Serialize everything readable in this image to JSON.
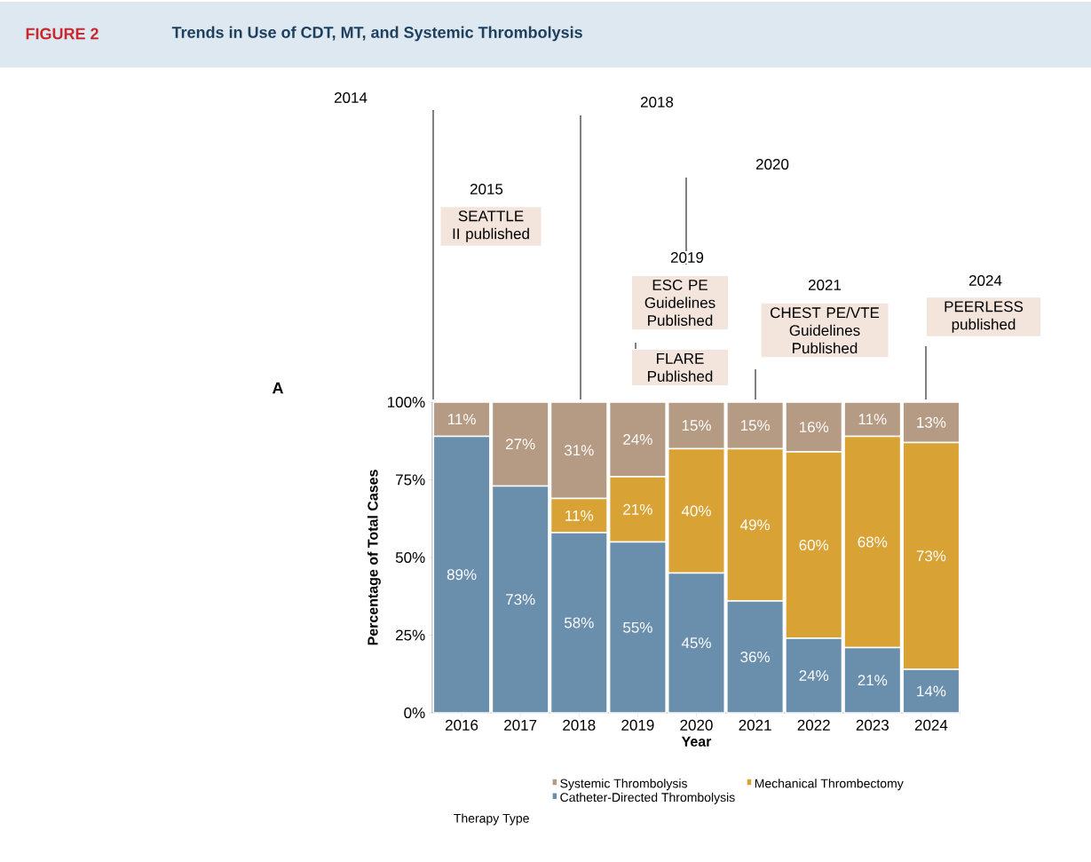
{
  "chart_data": {
    "type": "bar",
    "stacked": true,
    "title": "Trends in Use of CDT, MT, and Systemic Thrombolysis",
    "xlabel": "Year",
    "ylabel": "Percentage of Total Cases",
    "legend_title": "Therapy Type",
    "legend": "bottom",
    "categories": [
      "2016",
      "2017",
      "2018",
      "2019",
      "2020",
      "2021",
      "2022",
      "2023",
      "2024"
    ],
    "ylim": [
      0,
      100
    ],
    "yticks": [
      {
        "value": 0,
        "label": "0%"
      },
      {
        "value": 25,
        "label": "25%"
      },
      {
        "value": 50,
        "label": "50%"
      },
      {
        "value": 75,
        "label": "75%"
      },
      {
        "value": 100,
        "label": "100%"
      }
    ],
    "series": [
      {
        "name": "Catheter-Directed Thrombolysis",
        "color": "#6a8fad",
        "values": [
          89,
          73,
          58,
          55,
          45,
          36,
          24,
          21,
          14
        ],
        "value_labels": [
          "89%",
          "73%",
          "58%",
          "55%",
          "45%",
          "36%",
          "24%",
          "21%",
          "14%"
        ]
      },
      {
        "name": "Mechanical Thrombectomy",
        "color": "#d9a234",
        "values": [
          0,
          0,
          11,
          21,
          40,
          49,
          60,
          68,
          73
        ],
        "value_labels": [
          null,
          null,
          "11%",
          "21%",
          "40%",
          "49%",
          "60%",
          "68%",
          "73%"
        ]
      },
      {
        "name": "Systemic Thrombolysis",
        "color": "#b59a84",
        "values": [
          11,
          27,
          31,
          24,
          15,
          15,
          16,
          11,
          13
        ],
        "value_labels": [
          "11%",
          "27%",
          "31%",
          "24%",
          "15%",
          "15%",
          "16%",
          "11%",
          "13%"
        ]
      }
    ],
    "annotations": [
      "FIGURE 2",
      "2014",
      "2015",
      "SEATTLE II published",
      "2018",
      "2020",
      "2019",
      "ESC PE Guidelines Published",
      "FLARE Published",
      "2021",
      "CHEST PE/VTE Guidelines Published",
      "2024",
      "PEERLESS published",
      "A"
    ]
  }
}
